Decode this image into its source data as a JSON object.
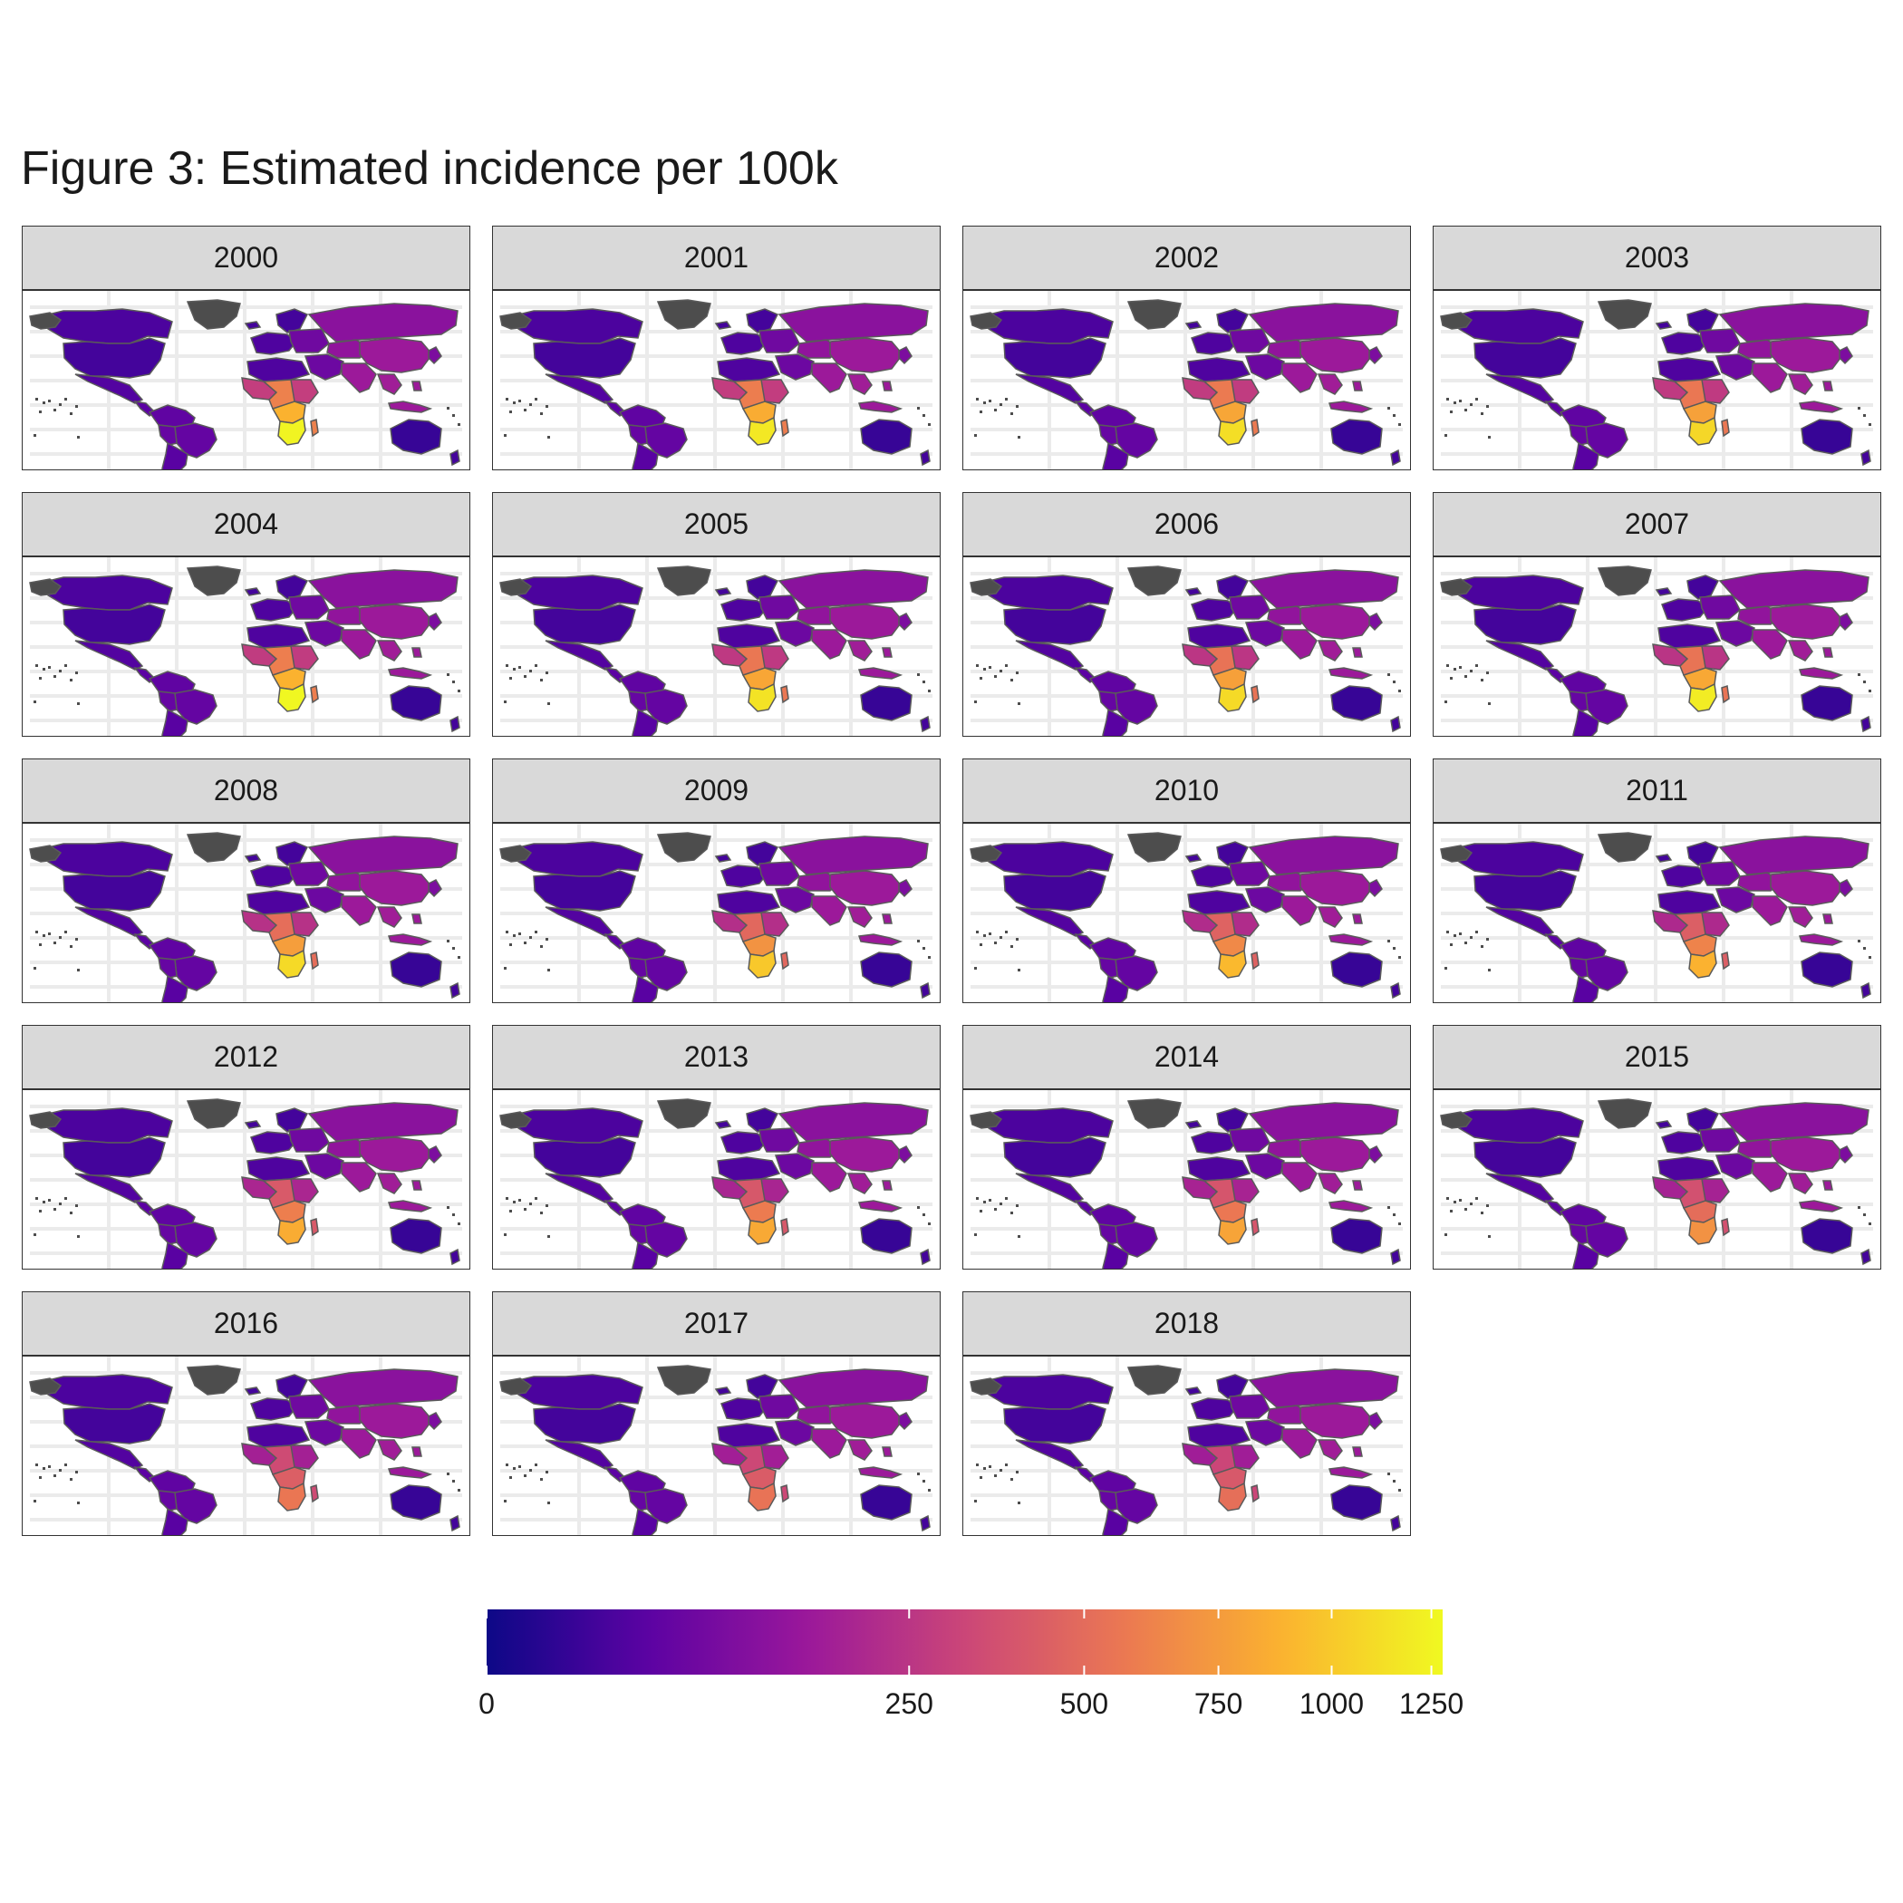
{
  "title": "Figure 3: Estimated incidence per 100k",
  "panels": [
    {
      "year": "2000",
      "africa_peak": 1250,
      "africa_mid": 520
    },
    {
      "year": "2001",
      "africa_peak": 1180,
      "africa_mid": 510
    },
    {
      "year": "2002",
      "africa_peak": 1120,
      "africa_mid": 500
    },
    {
      "year": "2003",
      "africa_peak": 1080,
      "africa_mid": 490
    },
    {
      "year": "2004",
      "africa_peak": 1270,
      "africa_mid": 500
    },
    {
      "year": "2005",
      "africa_peak": 1150,
      "africa_mid": 480
    },
    {
      "year": "2006",
      "africa_peak": 1100,
      "africa_mid": 460
    },
    {
      "year": "2007",
      "africa_peak": 1200,
      "africa_mid": 450
    },
    {
      "year": "2008",
      "africa_peak": 1100,
      "africa_mid": 430
    },
    {
      "year": "2009",
      "africa_peak": 1000,
      "africa_mid": 410
    },
    {
      "year": "2010",
      "africa_peak": 920,
      "africa_mid": 390
    },
    {
      "year": "2011",
      "africa_peak": 880,
      "africa_mid": 370
    },
    {
      "year": "2012",
      "africa_peak": 850,
      "africa_mid": 350
    },
    {
      "year": "2013",
      "africa_peak": 830,
      "africa_mid": 340
    },
    {
      "year": "2014",
      "africa_peak": 800,
      "africa_mid": 330
    },
    {
      "year": "2015",
      "africa_peak": 700,
      "africa_mid": 320
    },
    {
      "year": "2016",
      "africa_peak": 560,
      "africa_mid": 310
    },
    {
      "year": "2017",
      "africa_peak": 540,
      "africa_mid": 300
    },
    {
      "year": "2018",
      "africa_peak": 520,
      "africa_mid": 290
    }
  ],
  "legend": {
    "domain": [
      0,
      1280
    ],
    "breaks": [
      0,
      250,
      500,
      750,
      1000,
      1250
    ],
    "labels": [
      "0",
      "250",
      "500",
      "750",
      "1000",
      "1250"
    ],
    "scale": "sqrt",
    "palette": [
      "#0d0887",
      "#5b02a3",
      "#9a179b",
      "#cb4678",
      "#eb7852",
      "#fbb32f",
      "#f0f921"
    ]
  },
  "colors": {
    "border": "#5a5a5a",
    "no_data": "#4d4d4d",
    "grid": "#ebebeb"
  }
}
